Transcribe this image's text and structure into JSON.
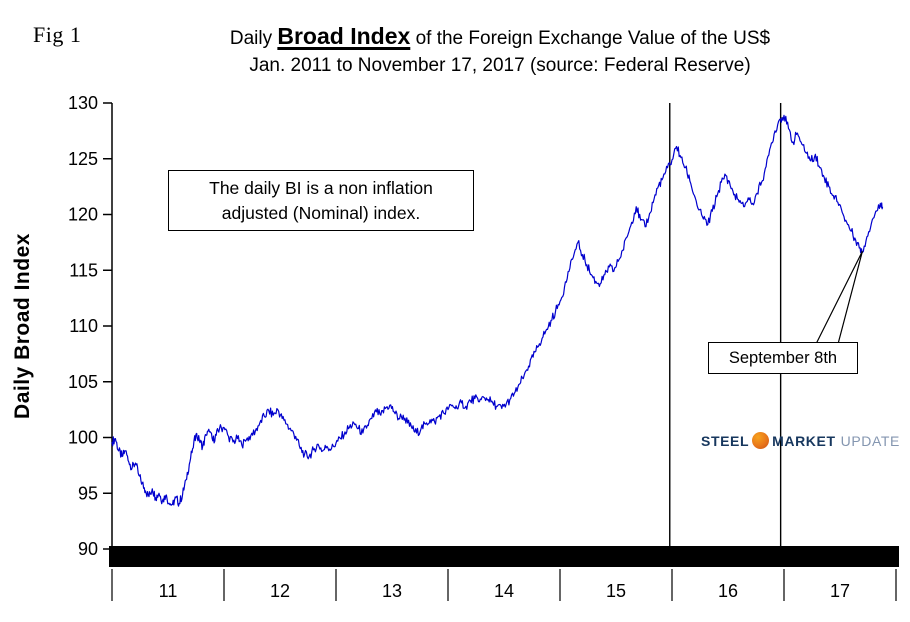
{
  "figure": {
    "label": "Fig 1"
  },
  "title": {
    "line1_prefix": "Daily ",
    "line1_emphasis": "Broad Index",
    "line1_suffix": " of the Foreign Exchange Value of the US$",
    "line2": "Jan. 2011 to November 17, 2017 (source: Federal Reserve)"
  },
  "y_axis_title": "Daily Broad Index",
  "note_box": {
    "line1": "The daily BI is a non inflation",
    "line2": "adjusted (Nominal) index."
  },
  "callout": {
    "label": "September 8th",
    "target_x": 2017.7,
    "target_y": 116.7
  },
  "logo": {
    "word1": "STEEL",
    "word2": "MARKET",
    "word3": "UPDATE",
    "colors": {
      "orange": "#E8761B",
      "navy": "#17375E",
      "gray": "#8496B0"
    }
  },
  "chart_data": {
    "type": "line",
    "title": "Daily Broad Index of the Foreign Exchange Value of the US$",
    "subtitle": "Jan. 2011 to November 17, 2017 (source: Federal Reserve)",
    "xlabel": "",
    "ylabel": "Daily Broad Index",
    "ylim": [
      90,
      130
    ],
    "yticks": [
      90,
      95,
      100,
      105,
      110,
      115,
      120,
      125,
      130
    ],
    "x_boundaries": [
      2011,
      2012,
      2013,
      2014,
      2015,
      2016,
      2017,
      2018
    ],
    "xtick_labels": [
      "11",
      "12",
      "13",
      "14",
      "15",
      "16",
      "17"
    ],
    "grid": false,
    "legend_position": "none",
    "line_color": "#0000CD",
    "vlines": [
      2015.98,
      2016.97
    ],
    "noise": {
      "amplitude": 0.4,
      "subdivisions": 5
    },
    "series": [
      {
        "name": "Daily Broad Index (Nominal)",
        "points": [
          [
            2011.0,
            99.6
          ],
          [
            2011.03,
            99.9
          ],
          [
            2011.06,
            98.8
          ],
          [
            2011.09,
            98.3
          ],
          [
            2011.12,
            98.8
          ],
          [
            2011.15,
            97.8
          ],
          [
            2011.18,
            97.3
          ],
          [
            2011.21,
            97.7
          ],
          [
            2011.24,
            96.6
          ],
          [
            2011.27,
            95.9
          ],
          [
            2011.3,
            95.2
          ],
          [
            2011.33,
            94.7
          ],
          [
            2011.36,
            95.4
          ],
          [
            2011.39,
            94.6
          ],
          [
            2011.42,
            95.0
          ],
          [
            2011.45,
            94.3
          ],
          [
            2011.48,
            94.8
          ],
          [
            2011.51,
            94.1
          ],
          [
            2011.54,
            94.0
          ],
          [
            2011.57,
            94.6
          ],
          [
            2011.6,
            94.1
          ],
          [
            2011.63,
            94.9
          ],
          [
            2011.66,
            96.2
          ],
          [
            2011.69,
            97.6
          ],
          [
            2011.72,
            99.0
          ],
          [
            2011.75,
            100.3
          ],
          [
            2011.78,
            99.7
          ],
          [
            2011.81,
            99.2
          ],
          [
            2011.84,
            100.2
          ],
          [
            2011.87,
            100.5
          ],
          [
            2011.9,
            99.7
          ],
          [
            2011.93,
            100.2
          ],
          [
            2011.96,
            100.8
          ],
          [
            2012.0,
            100.9
          ],
          [
            2012.04,
            100.1
          ],
          [
            2012.08,
            99.6
          ],
          [
            2012.12,
            99.9
          ],
          [
            2012.16,
            99.3
          ],
          [
            2012.2,
            99.8
          ],
          [
            2012.24,
            100.2
          ],
          [
            2012.28,
            100.6
          ],
          [
            2012.32,
            101.3
          ],
          [
            2012.36,
            101.9
          ],
          [
            2012.4,
            102.4
          ],
          [
            2012.44,
            102.0
          ],
          [
            2012.48,
            102.5
          ],
          [
            2012.52,
            101.7
          ],
          [
            2012.56,
            101.2
          ],
          [
            2012.6,
            100.6
          ],
          [
            2012.64,
            100.1
          ],
          [
            2012.68,
            99.0
          ],
          [
            2012.72,
            98.5
          ],
          [
            2012.76,
            98.3
          ],
          [
            2012.8,
            98.9
          ],
          [
            2012.84,
            99.4
          ],
          [
            2012.88,
            98.8
          ],
          [
            2012.92,
            99.2
          ],
          [
            2012.96,
            99.0
          ],
          [
            2013.0,
            99.5
          ],
          [
            2013.04,
            99.9
          ],
          [
            2013.08,
            100.5
          ],
          [
            2013.12,
            100.9
          ],
          [
            2013.16,
            101.3
          ],
          [
            2013.2,
            100.8
          ],
          [
            2013.24,
            100.4
          ],
          [
            2013.28,
            101.1
          ],
          [
            2013.32,
            101.7
          ],
          [
            2013.36,
            102.3
          ],
          [
            2013.4,
            102.0
          ],
          [
            2013.44,
            102.6
          ],
          [
            2013.48,
            102.9
          ],
          [
            2013.52,
            102.3
          ],
          [
            2013.56,
            101.7
          ],
          [
            2013.6,
            102.0
          ],
          [
            2013.64,
            101.3
          ],
          [
            2013.68,
            100.8
          ],
          [
            2013.72,
            100.4
          ],
          [
            2013.76,
            100.8
          ],
          [
            2013.8,
            101.2
          ],
          [
            2013.84,
            101.6
          ],
          [
            2013.88,
            101.4
          ],
          [
            2013.92,
            101.9
          ],
          [
            2013.96,
            102.2
          ],
          [
            2014.0,
            102.5
          ],
          [
            2014.04,
            102.9
          ],
          [
            2014.08,
            102.6
          ],
          [
            2014.12,
            103.1
          ],
          [
            2014.16,
            102.8
          ],
          [
            2014.2,
            103.3
          ],
          [
            2014.24,
            103.5
          ],
          [
            2014.28,
            103.2
          ],
          [
            2014.32,
            103.6
          ],
          [
            2014.36,
            103.4
          ],
          [
            2014.4,
            103.1
          ],
          [
            2014.44,
            102.8
          ],
          [
            2014.48,
            102.6
          ],
          [
            2014.52,
            103.0
          ],
          [
            2014.56,
            103.5
          ],
          [
            2014.6,
            104.1
          ],
          [
            2014.64,
            104.8
          ],
          [
            2014.68,
            105.6
          ],
          [
            2014.72,
            106.4
          ],
          [
            2014.76,
            107.2
          ],
          [
            2014.8,
            108.1
          ],
          [
            2014.84,
            108.9
          ],
          [
            2014.88,
            109.7
          ],
          [
            2014.92,
            110.5
          ],
          [
            2014.96,
            111.3
          ],
          [
            2015.0,
            112.2
          ],
          [
            2015.04,
            113.5
          ],
          [
            2015.08,
            114.9
          ],
          [
            2015.12,
            116.2
          ],
          [
            2015.16,
            117.5
          ],
          [
            2015.2,
            116.4
          ],
          [
            2015.24,
            115.5
          ],
          [
            2015.28,
            114.6
          ],
          [
            2015.32,
            114.0
          ],
          [
            2015.36,
            113.8
          ],
          [
            2015.4,
            114.6
          ],
          [
            2015.44,
            115.3
          ],
          [
            2015.48,
            114.9
          ],
          [
            2015.52,
            115.8
          ],
          [
            2015.56,
            116.8
          ],
          [
            2015.6,
            118.0
          ],
          [
            2015.64,
            119.3
          ],
          [
            2015.68,
            120.7
          ],
          [
            2015.72,
            119.5
          ],
          [
            2015.76,
            118.9
          ],
          [
            2015.8,
            120.1
          ],
          [
            2015.84,
            121.4
          ],
          [
            2015.88,
            122.6
          ],
          [
            2015.92,
            123.3
          ],
          [
            2015.96,
            124.2
          ],
          [
            2016.0,
            124.9
          ],
          [
            2016.04,
            126.1
          ],
          [
            2016.08,
            125.1
          ],
          [
            2016.12,
            124.2
          ],
          [
            2016.16,
            123.0
          ],
          [
            2016.2,
            121.7
          ],
          [
            2016.24,
            120.4
          ],
          [
            2016.28,
            119.6
          ],
          [
            2016.32,
            119.1
          ],
          [
            2016.36,
            120.3
          ],
          [
            2016.4,
            121.6
          ],
          [
            2016.44,
            122.9
          ],
          [
            2016.48,
            123.5
          ],
          [
            2016.52,
            122.6
          ],
          [
            2016.56,
            121.8
          ],
          [
            2016.6,
            121.1
          ],
          [
            2016.64,
            120.7
          ],
          [
            2016.68,
            121.5
          ],
          [
            2016.72,
            121.0
          ],
          [
            2016.76,
            121.9
          ],
          [
            2016.8,
            122.9
          ],
          [
            2016.84,
            124.3
          ],
          [
            2016.88,
            126.1
          ],
          [
            2016.92,
            127.5
          ],
          [
            2016.96,
            128.5
          ],
          [
            2017.0,
            128.9
          ],
          [
            2017.04,
            127.7
          ],
          [
            2017.08,
            126.5
          ],
          [
            2017.12,
            127.3
          ],
          [
            2017.16,
            126.3
          ],
          [
            2017.2,
            125.5
          ],
          [
            2017.24,
            124.8
          ],
          [
            2017.28,
            125.4
          ],
          [
            2017.32,
            124.2
          ],
          [
            2017.36,
            123.3
          ],
          [
            2017.4,
            122.5
          ],
          [
            2017.44,
            121.7
          ],
          [
            2017.48,
            121.1
          ],
          [
            2017.52,
            120.2
          ],
          [
            2017.56,
            119.3
          ],
          [
            2017.6,
            118.5
          ],
          [
            2017.64,
            117.7
          ],
          [
            2017.68,
            117.0
          ],
          [
            2017.7,
            116.6
          ],
          [
            2017.74,
            118.0
          ],
          [
            2017.78,
            119.2
          ],
          [
            2017.82,
            120.3
          ],
          [
            2017.86,
            121.0
          ],
          [
            2017.88,
            120.7
          ]
        ]
      }
    ]
  }
}
